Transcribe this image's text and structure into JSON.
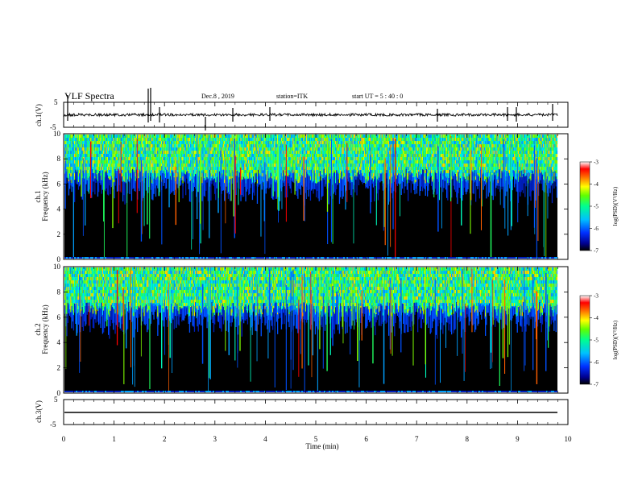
{
  "header": {
    "title": "VLF Spectra",
    "date": "Dec.8 , 2019",
    "station": "station=ITK",
    "start": "start UT = 5 : 40 : 0"
  },
  "colors": {
    "background": "#000000",
    "waveform": "#000000"
  },
  "chart_data": [
    {
      "type": "line",
      "name": "ch1-waveform",
      "ylabel": "ch.1(V)",
      "ylim": [
        -5,
        5
      ],
      "yticks": [
        "5",
        "-5"
      ],
      "xlim": [
        0,
        10
      ]
    },
    {
      "type": "heatmap",
      "name": "ch1-spectrogram",
      "ylabel_line1": "ch.1",
      "ylabel_line2": "Frequency (kHz)",
      "ylim": [
        0,
        10
      ],
      "yticks": [
        "0",
        "2",
        "4",
        "6",
        "8",
        "10"
      ],
      "colorbar": {
        "label": "log(PSD)(V²/Hz)",
        "range": [
          -7,
          -3
        ],
        "ticks": [
          "-3",
          "-4",
          "-5",
          "-6",
          "-7"
        ]
      }
    },
    {
      "type": "heatmap",
      "name": "ch2-spectrogram",
      "ylabel_line1": "ch.2",
      "ylabel_line2": "Frequency (kHz)",
      "ylim": [
        0,
        10
      ],
      "yticks": [
        "0",
        "2",
        "4",
        "6",
        "8",
        "10"
      ],
      "colorbar": {
        "label": "log(PSD)(V²/Hz)",
        "range": [
          -7,
          -3
        ],
        "ticks": [
          "-3",
          "-4",
          "-5",
          "-6",
          "-7"
        ]
      }
    },
    {
      "type": "line",
      "name": "ch3-waveform",
      "ylabel": "ch.3(V)",
      "ylim": [
        -5,
        5
      ],
      "yticks": [
        "5",
        "-5"
      ],
      "xlim": [
        0,
        10
      ]
    }
  ],
  "xaxis": {
    "label": "Time (min)",
    "range": [
      0,
      10
    ],
    "ticks": [
      "0",
      "1",
      "2",
      "3",
      "4",
      "5",
      "6",
      "7",
      "8",
      "9",
      "10"
    ]
  }
}
